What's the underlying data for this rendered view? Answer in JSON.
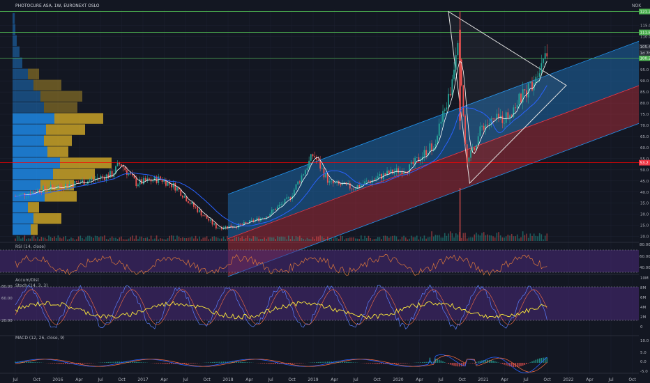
{
  "header": {
    "title": "PHOTOCURE ASA, 1W, EURONEXT OSLO",
    "currency": "NOK"
  },
  "price_badges": [
    {
      "value": "121.2",
      "color": "#4caf50"
    },
    {
      "value": "111.8",
      "color": "#4caf50"
    },
    {
      "value": "100.2",
      "color": "#4caf50"
    },
    {
      "value": "53.2",
      "color": "#f23645"
    }
  ],
  "colors": {
    "up": "#26a69a",
    "down": "#ef5350",
    "ma_white": "#ffffff",
    "ma_blue": "#2962ff",
    "channel_blue": "#2196f3",
    "channel_red": "#f23645",
    "hline_green": "#4caf50",
    "hline_red": "#ff0000",
    "vp_blue": "#1e88e5",
    "vp_gold": "#c9a227",
    "panel_purple": "#4a2a7a",
    "rsi_line": "#e0793a",
    "stoch_k": "#5b7fff",
    "stoch_d": "#ff7043",
    "accum": "#ffeb3b"
  },
  "panels": {
    "rsi": {
      "label": "RSI (14, close)",
      "axis": [
        "80.00",
        "60.00",
        "40.00"
      ]
    },
    "stoch": {
      "label_a": "Accum/Dist",
      "label_b": "Stoch (14, 3, 3)",
      "left_axis": [
        "80.00",
        "60.00",
        "20.00"
      ],
      "right_axis": [
        "10M",
        "8M",
        "6M",
        "4M",
        "2M",
        "0"
      ]
    },
    "macd": {
      "label": "MACD (12, 26, close, 9)",
      "axis": [
        "10.0",
        "5.0",
        "0.0",
        "-5.0"
      ]
    }
  },
  "time_axis": [
    "Jul",
    "Oct",
    "2016",
    "Apr",
    "Jul",
    "Oct",
    "2017",
    "Apr",
    "Jul",
    "Oct",
    "2018",
    "Apr",
    "Jul",
    "Oct",
    "2019",
    "Apr",
    "Jul",
    "Oct",
    "2020",
    "Apr",
    "Jul",
    "Oct",
    "2021",
    "Apr",
    "Jul",
    "Oct",
    "2022",
    "Apr",
    "Jul",
    "Oct"
  ],
  "chart_data": {
    "type": "candlestick",
    "title": "PHOTOCURE ASA, 1W, EURONEXT OSLO",
    "y_axis_ticks": [
      115.0,
      110.0,
      105.0,
      100.0,
      95.0,
      90.0,
      85.0,
      80.0,
      75.0,
      70.0,
      65.0,
      60.0,
      55.0,
      50.0,
      45.0,
      40.0,
      35.0,
      30.0,
      25.0,
      20.0
    ],
    "ylim": [
      18,
      122
    ],
    "scale": "linear",
    "horizontal_levels": [
      121.2,
      111.8,
      100.2,
      53.2
    ],
    "last_price_labels": [
      "105.4",
      "1d 7h"
    ],
    "close_path": [
      {
        "t": "2015-07",
        "v": 38
      },
      {
        "t": "2015-10",
        "v": 41
      },
      {
        "t": "2016-01",
        "v": 43
      },
      {
        "t": "2016-04",
        "v": 45
      },
      {
        "t": "2016-07",
        "v": 48
      },
      {
        "t": "2016-08",
        "v": 53
      },
      {
        "t": "2016-10",
        "v": 44
      },
      {
        "t": "2017-01",
        "v": 46
      },
      {
        "t": "2017-03",
        "v": 42
      },
      {
        "t": "2017-05",
        "v": 34
      },
      {
        "t": "2017-08",
        "v": 24
      },
      {
        "t": "2017-11",
        "v": 25
      },
      {
        "t": "2018-02",
        "v": 29
      },
      {
        "t": "2018-05",
        "v": 37
      },
      {
        "t": "2018-08",
        "v": 57
      },
      {
        "t": "2018-10",
        "v": 44
      },
      {
        "t": "2019-01",
        "v": 42
      },
      {
        "t": "2019-05",
        "v": 48
      },
      {
        "t": "2019-08",
        "v": 51
      },
      {
        "t": "2019-11",
        "v": 62
      },
      {
        "t": "2020-01",
        "v": 85
      },
      {
        "t": "2020-02",
        "v": 113
      },
      {
        "t": "2020-03",
        "v": 52
      },
      {
        "t": "2020-05",
        "v": 70
      },
      {
        "t": "2020-08",
        "v": 74
      },
      {
        "t": "2020-11",
        "v": 88
      },
      {
        "t": "2021-01",
        "v": 105
      }
    ]
  }
}
